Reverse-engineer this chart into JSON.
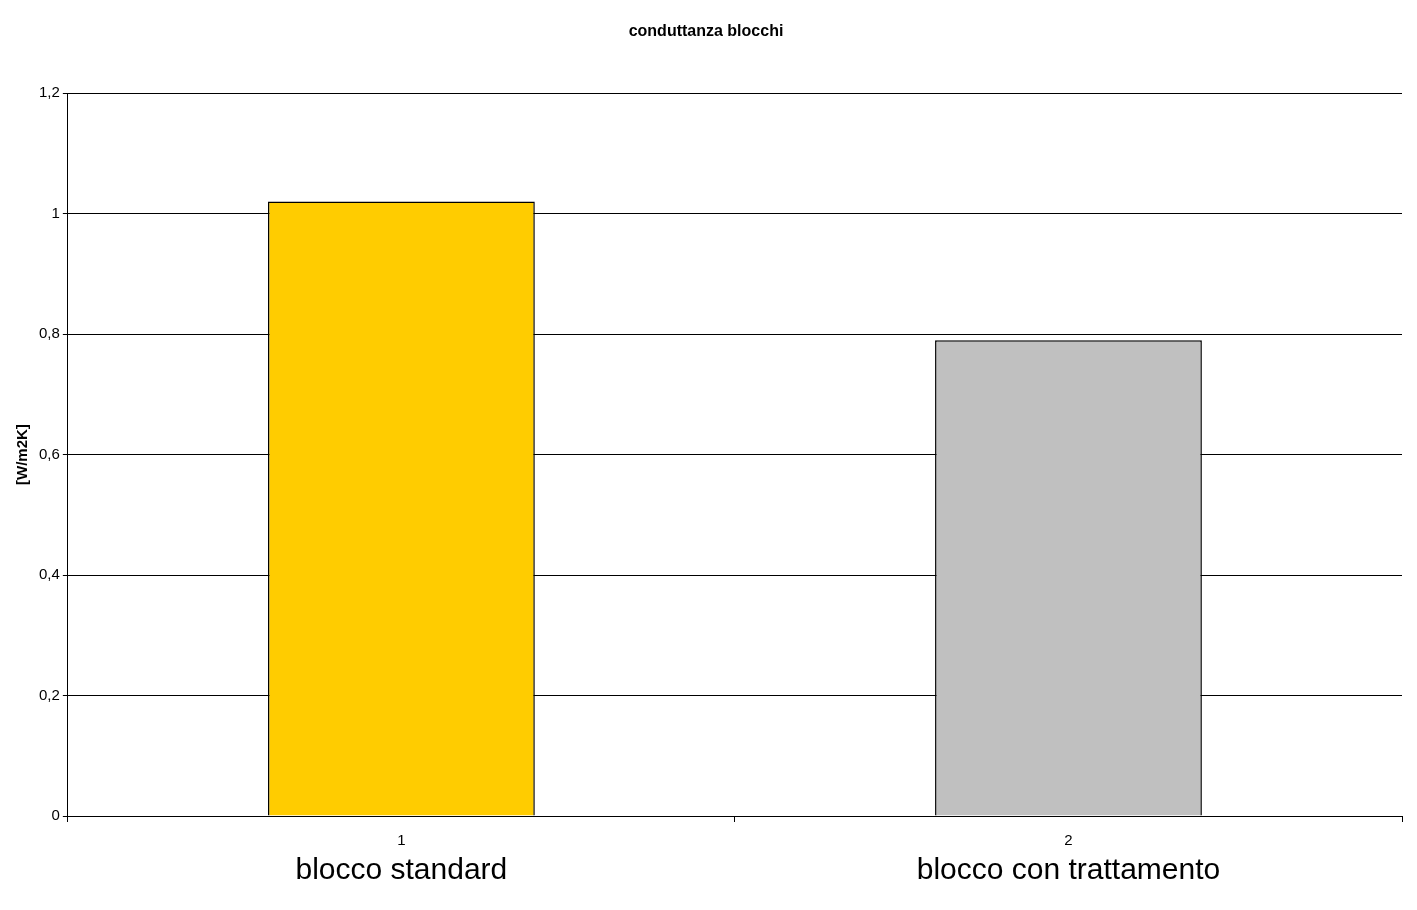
{
  "chart_data": {
    "type": "bar",
    "title": "conduttanza blocchi",
    "ylabel": "[W/m2K]",
    "categories": [
      "1",
      "2"
    ],
    "values": [
      1.02,
      0.79
    ],
    "colors": [
      "#ffcc00",
      "#c0c0c0"
    ],
    "ylim": [
      0,
      1.2
    ],
    "yticks": [
      0,
      {
        "value": 0.2,
        "label": "0,2"
      },
      {
        "value": 0.4,
        "label": "0,4"
      },
      {
        "value": 0.6,
        "label": "0,6"
      },
      {
        "value": 0.8,
        "label": "0,8"
      },
      1,
      {
        "value": 1.2,
        "label": "1,2"
      }
    ],
    "grid": "y",
    "annotations": [
      "blocco standard",
      "blocco con trattamento"
    ]
  }
}
